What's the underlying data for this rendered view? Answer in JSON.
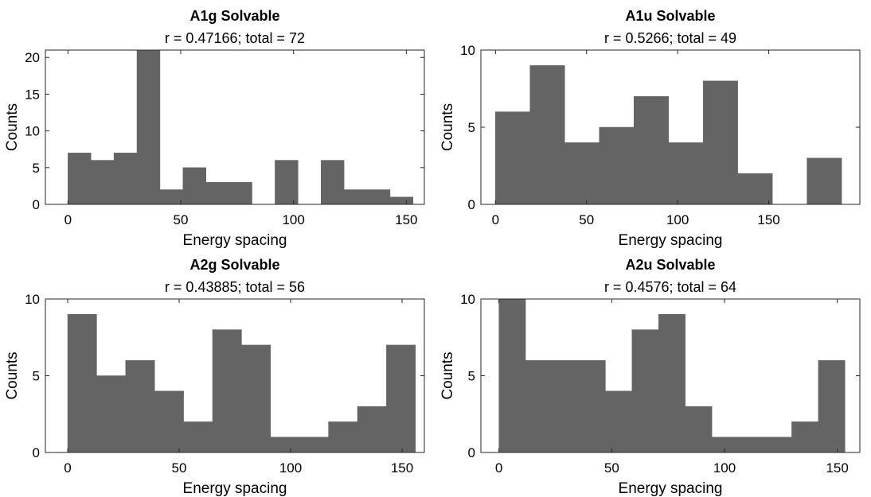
{
  "figure": {
    "bar_color": "#646464",
    "axis_color": "#262626"
  },
  "chart_data": [
    {
      "type": "bar",
      "title": "A1g Solvable",
      "subtitle": "r = 0.47166; total = 72",
      "xlabel": "Energy spacing",
      "ylabel": "Counts",
      "xlim": [
        -10,
        158
      ],
      "ylim": [
        0,
        21
      ],
      "xticks": [
        0,
        50,
        100,
        150
      ],
      "yticks": [
        0,
        5,
        10,
        15,
        20
      ],
      "grid": false,
      "bins": [
        {
          "x0": 0,
          "x1": 10.2,
          "value": 7
        },
        {
          "x0": 10.2,
          "x1": 20.4,
          "value": 6
        },
        {
          "x0": 20.4,
          "x1": 30.6,
          "value": 7
        },
        {
          "x0": 30.6,
          "x1": 40.8,
          "value": 21
        },
        {
          "x0": 40.8,
          "x1": 51.0,
          "value": 2
        },
        {
          "x0": 51.0,
          "x1": 61.2,
          "value": 5
        },
        {
          "x0": 61.2,
          "x1": 71.4,
          "value": 3
        },
        {
          "x0": 71.4,
          "x1": 81.6,
          "value": 3
        },
        {
          "x0": 81.6,
          "x1": 91.8,
          "value": 0
        },
        {
          "x0": 91.8,
          "x1": 102.0,
          "value": 6
        },
        {
          "x0": 102.0,
          "x1": 112.2,
          "value": 0
        },
        {
          "x0": 112.2,
          "x1": 122.4,
          "value": 6
        },
        {
          "x0": 122.4,
          "x1": 132.6,
          "value": 2
        },
        {
          "x0": 132.6,
          "x1": 142.8,
          "value": 2
        },
        {
          "x0": 142.8,
          "x1": 153.0,
          "value": 1
        }
      ]
    },
    {
      "type": "bar",
      "title": "A1u Solvable",
      "subtitle": "r = 0.5266; total = 49",
      "xlabel": "Energy spacing",
      "ylabel": "Counts",
      "xlim": [
        -8,
        200
      ],
      "ylim": [
        0,
        10
      ],
      "xticks": [
        0,
        50,
        100,
        150
      ],
      "yticks": [
        0,
        5,
        10
      ],
      "grid": false,
      "bins": [
        {
          "x0": 0,
          "x1": 19,
          "value": 6
        },
        {
          "x0": 19,
          "x1": 38,
          "value": 9
        },
        {
          "x0": 38,
          "x1": 57,
          "value": 4
        },
        {
          "x0": 57,
          "x1": 76,
          "value": 5
        },
        {
          "x0": 76,
          "x1": 95,
          "value": 7
        },
        {
          "x0": 95,
          "x1": 114,
          "value": 4
        },
        {
          "x0": 114,
          "x1": 133,
          "value": 8
        },
        {
          "x0": 133,
          "x1": 152,
          "value": 2
        },
        {
          "x0": 152,
          "x1": 171,
          "value": 0
        },
        {
          "x0": 171,
          "x1": 190,
          "value": 3
        }
      ]
    },
    {
      "type": "bar",
      "title": "A2g Solvable",
      "subtitle": "r = 0.43885; total = 56",
      "xlabel": "Energy spacing",
      "ylabel": "Counts",
      "xlim": [
        -10,
        160
      ],
      "ylim": [
        0,
        10
      ],
      "xticks": [
        0,
        50,
        100,
        150
      ],
      "yticks": [
        0,
        5,
        10
      ],
      "grid": false,
      "bins": [
        {
          "x0": 0,
          "x1": 13,
          "value": 9
        },
        {
          "x0": 13,
          "x1": 26,
          "value": 5
        },
        {
          "x0": 26,
          "x1": 39,
          "value": 6
        },
        {
          "x0": 39,
          "x1": 52,
          "value": 4
        },
        {
          "x0": 52,
          "x1": 65,
          "value": 2
        },
        {
          "x0": 65,
          "x1": 78,
          "value": 8
        },
        {
          "x0": 78,
          "x1": 91,
          "value": 7
        },
        {
          "x0": 91,
          "x1": 104,
          "value": 1
        },
        {
          "x0": 104,
          "x1": 117,
          "value": 1
        },
        {
          "x0": 117,
          "x1": 130,
          "value": 2
        },
        {
          "x0": 130,
          "x1": 143,
          "value": 3
        },
        {
          "x0": 143,
          "x1": 156,
          "value": 7
        }
      ]
    },
    {
      "type": "bar",
      "title": "A2u Solvable",
      "subtitle": "r = 0.4576; total = 64",
      "xlabel": "Energy spacing",
      "ylabel": "Counts",
      "xlim": [
        -8,
        160
      ],
      "ylim": [
        0,
        10
      ],
      "xticks": [
        0,
        50,
        100,
        150
      ],
      "yticks": [
        0,
        5,
        10
      ],
      "grid": false,
      "bins": [
        {
          "x0": 0,
          "x1": 11.8,
          "value": 10
        },
        {
          "x0": 11.8,
          "x1": 23.6,
          "value": 6
        },
        {
          "x0": 23.6,
          "x1": 35.4,
          "value": 6
        },
        {
          "x0": 35.4,
          "x1": 47.2,
          "value": 6
        },
        {
          "x0": 47.2,
          "x1": 59.0,
          "value": 4
        },
        {
          "x0": 59.0,
          "x1": 70.8,
          "value": 8
        },
        {
          "x0": 70.8,
          "x1": 82.6,
          "value": 9
        },
        {
          "x0": 82.6,
          "x1": 94.4,
          "value": 3
        },
        {
          "x0": 94.4,
          "x1": 106.2,
          "value": 1
        },
        {
          "x0": 106.2,
          "x1": 118.0,
          "value": 1
        },
        {
          "x0": 118.0,
          "x1": 129.8,
          "value": 1
        },
        {
          "x0": 129.8,
          "x1": 141.6,
          "value": 2
        },
        {
          "x0": 141.6,
          "x1": 153.4,
          "value": 6
        }
      ]
    }
  ]
}
